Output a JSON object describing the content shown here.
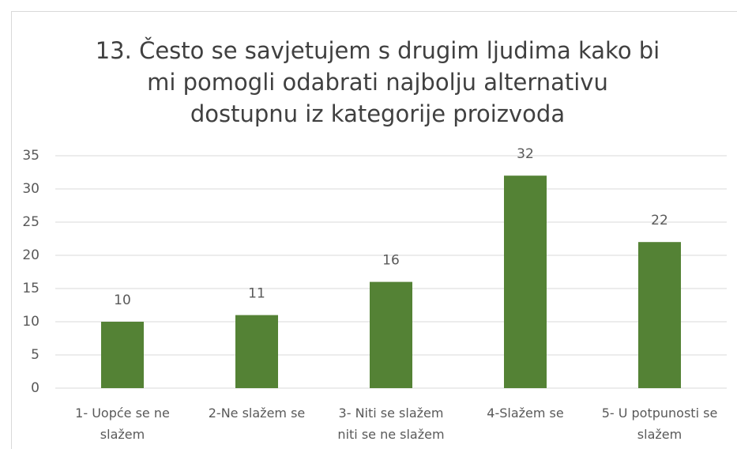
{
  "chart_data": {
    "type": "bar",
    "title": "13. Često se savjetujem s drugim ljudima kako bi mi pomogli odabrati najbolju alternativu dostupnu iz kategorije proizvoda",
    "categories": [
      "1- Uopće se ne slažem",
      "2-Ne slažem se",
      "3- Niti se slažem niti se ne slažem",
      "4-Slažem se",
      "5- U potpunosti se slažem"
    ],
    "values": [
      10,
      11,
      16,
      32,
      22
    ],
    "color": "#548235",
    "ylim": [
      0,
      35
    ],
    "yticks": [
      0,
      5,
      10,
      15,
      20,
      25,
      30,
      35
    ],
    "grid": true
  }
}
